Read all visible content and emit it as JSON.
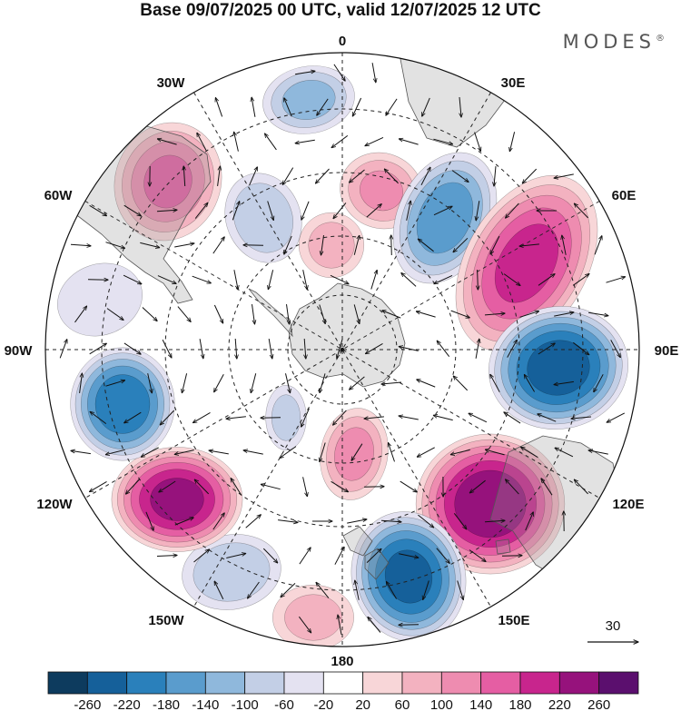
{
  "title": "Base 09/07/2025 00 UTC, valid 12/07/2025 12 UTC",
  "brand": {
    "name": "MODES",
    "mark": "®"
  },
  "longitude_labels": [
    {
      "id": "0",
      "text": "0"
    },
    {
      "id": "30e",
      "text": "30E"
    },
    {
      "id": "60e",
      "text": "60E"
    },
    {
      "id": "90e",
      "text": "90E"
    },
    {
      "id": "120e",
      "text": "120E"
    },
    {
      "id": "150e",
      "text": "150E"
    },
    {
      "id": "180",
      "text": "180"
    },
    {
      "id": "150w",
      "text": "150W"
    },
    {
      "id": "120w",
      "text": "120W"
    },
    {
      "id": "90w",
      "text": "90W"
    },
    {
      "id": "60w",
      "text": "60W"
    },
    {
      "id": "30w",
      "text": "30W"
    }
  ],
  "wind_reference": {
    "value": "30"
  },
  "colorbar": {
    "colors": [
      "#0d3b5e",
      "#15609a",
      "#2a80bb",
      "#5a9ccd",
      "#8fb8dc",
      "#c3cfe6",
      "#e4e2f1",
      "#ffffff",
      "#f8d6d8",
      "#f3b2c0",
      "#ee8cb0",
      "#e55ea3",
      "#c8258d",
      "#96127c",
      "#5b0f6e"
    ],
    "labels": [
      "-260",
      "-220",
      "-180",
      "-140",
      "-100",
      "-60",
      "-20",
      "20",
      "60",
      "100",
      "140",
      "180",
      "220",
      "260"
    ]
  },
  "anomaly_centers": [
    {
      "id": "mid-atlantic",
      "value": -120
    },
    {
      "id": "south-america-east",
      "value": 150
    },
    {
      "id": "south-atlantic-west",
      "value": -100
    },
    {
      "id": "weddell",
      "value": 80
    },
    {
      "id": "south-atlantic-central",
      "value": 110
    },
    {
      "id": "africa-south",
      "value": -170
    },
    {
      "id": "indian-southwest",
      "value": 200
    },
    {
      "id": "indian-central",
      "value": -250
    },
    {
      "id": "australia-south",
      "value": 260
    },
    {
      "id": "new-zealand",
      "value": -240
    },
    {
      "id": "pacific-southwest",
      "value": 80
    },
    {
      "id": "pacific-central",
      "value": -100
    },
    {
      "id": "pacific-east",
      "value": 240
    },
    {
      "id": "pacific-southeast",
      "value": -220
    },
    {
      "id": "chile-west",
      "value": -60
    },
    {
      "id": "ross",
      "value": 120
    },
    {
      "id": "bellingshausen",
      "value": -80
    }
  ]
}
